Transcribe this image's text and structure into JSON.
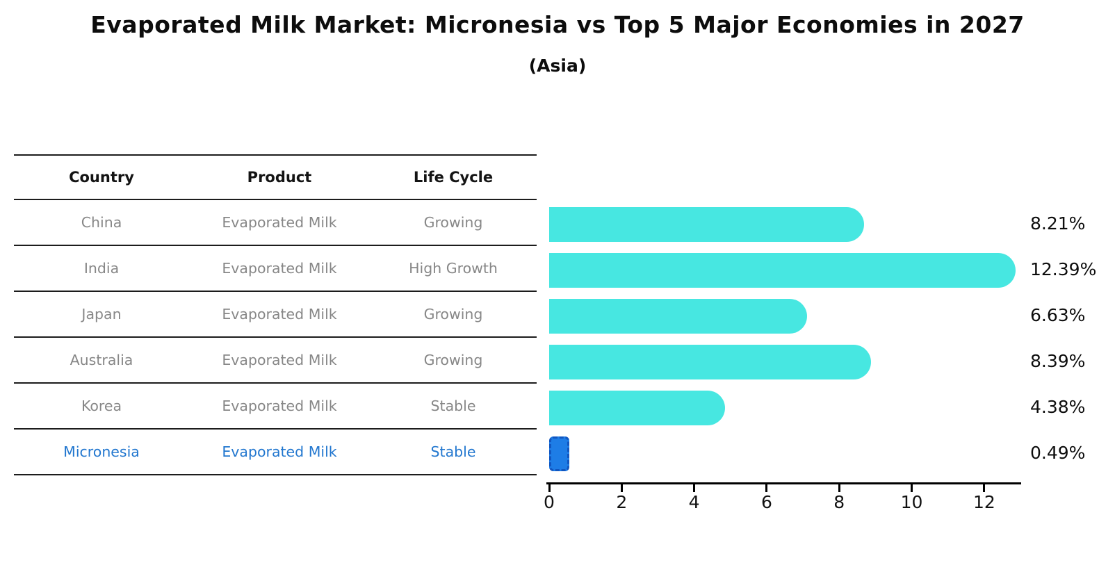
{
  "title": "Evaporated Milk Market: Micronesia vs Top 5 Major Economies in 2027",
  "subtitle": "(Asia)",
  "table": {
    "headers": [
      "Country",
      "Product",
      "Life Cycle"
    ]
  },
  "chart_data": {
    "type": "bar",
    "orientation": "horizontal",
    "title": "Evaporated Milk Market: Micronesia vs Top 5 Major Economies in 2027",
    "subtitle": "(Asia)",
    "categories": [
      "China",
      "India",
      "Japan",
      "Australia",
      "Korea",
      "Micronesia"
    ],
    "values": [
      8.21,
      12.39,
      6.63,
      8.39,
      4.38,
      0.49
    ],
    "rows": [
      {
        "country": "China",
        "product": "Evaporated Milk",
        "life_cycle": "Growing",
        "value": 8.21,
        "label": "8.21%",
        "highlight": false
      },
      {
        "country": "India",
        "product": "Evaporated Milk",
        "life_cycle": "High Growth",
        "value": 12.39,
        "label": "12.39%",
        "highlight": false
      },
      {
        "country": "Japan",
        "product": "Evaporated Milk",
        "life_cycle": "Growing",
        "value": 6.63,
        "label": "6.63%",
        "highlight": false
      },
      {
        "country": "Australia",
        "product": "Evaporated Milk",
        "life_cycle": "Growing",
        "value": 8.39,
        "label": "8.39%",
        "highlight": false
      },
      {
        "country": "Korea",
        "product": "Evaporated Milk",
        "life_cycle": "Stable",
        "value": 4.38,
        "label": "4.38%",
        "highlight": false
      },
      {
        "country": "Micronesia",
        "product": "Evaporated Milk",
        "life_cycle": "Stable",
        "value": 0.49,
        "label": "0.49%",
        "highlight": true
      }
    ],
    "x_ticks": [
      0,
      2,
      4,
      6,
      8,
      10,
      12
    ],
    "xlim": [
      0,
      13
    ],
    "grid": false,
    "legend": "none",
    "colors": {
      "bar": "#47e7e1",
      "highlight_bar": "#1e7de6",
      "highlight_border": "#1156c0",
      "highlight_text": "#2277cf",
      "row_text": "#878787",
      "header_text": "#141414",
      "axis_text": "#111111"
    }
  }
}
